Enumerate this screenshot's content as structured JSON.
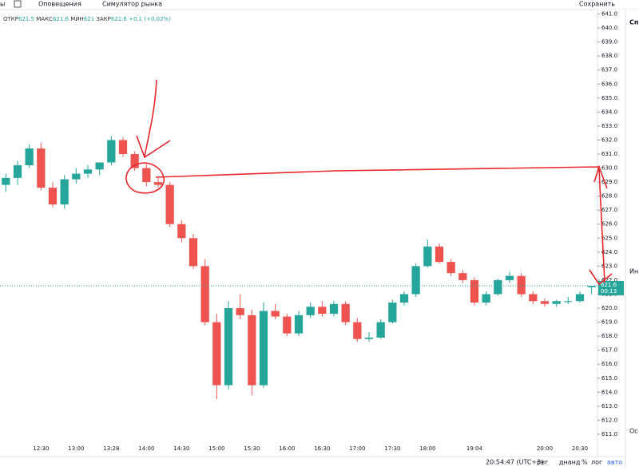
{
  "toolbar": {
    "left": "ы",
    "alerts": "Оповещения",
    "simulator": "Симулятор рынка",
    "save": "Сохранить"
  },
  "legend": {
    "open": "ОТКР",
    "high": "МАКС",
    "low": "МИН",
    "close": "ЗАКР",
    "change": "+0.1 (+0.02%)"
  },
  "countdown": "00:13",
  "status": {
    "time": "20:54:47 (UTC+3)",
    "session": "рег",
    "adjust": "днанд",
    "percent": "%",
    "log": "лог",
    "auto": "авто"
  },
  "sidebar": {
    "title": "Спи",
    "item": "Ин",
    "section": "Ос"
  },
  "chart_data": {
    "type": "candlestick",
    "up_color": "#26a69a",
    "down_color": "#ef5350",
    "categories": [
      null,
      null,
      null,
      "12:30",
      null,
      null,
      "13:00",
      null,
      null,
      "13:28",
      null,
      null,
      "14:00",
      null,
      null,
      "14:30",
      null,
      null,
      "15:00",
      null,
      null,
      "15:30",
      null,
      null,
      "16:00",
      null,
      null,
      "16:30",
      null,
      null,
      "17:00",
      null,
      null,
      "17:30",
      null,
      null,
      "18:00",
      null,
      null,
      null,
      "19:04",
      null,
      null,
      null,
      null,
      null,
      "20:00",
      null,
      null,
      "20:30",
      null
    ],
    "open": [
      628.8,
      629.3,
      630.2,
      631.4,
      628.6,
      627.4,
      629.2,
      629.6,
      629.9,
      630.4,
      632.0,
      631.0,
      630.0,
      629.0,
      628.8,
      626.0,
      625.0,
      623.0,
      619.0,
      614.5,
      620.0,
      619.5,
      614.5,
      619.8,
      619.4,
      618.2,
      619.5,
      620.1,
      619.6,
      620.3,
      619.0,
      617.8,
      617.9,
      619.0,
      620.4,
      621.0,
      623.0,
      624.4,
      623.3,
      622.5,
      622.0,
      620.4,
      621.0,
      622.0,
      622.3,
      621.0,
      620.5,
      620.3,
      620.5,
      620.5,
      621.5
    ],
    "high": [
      629.6,
      630.5,
      631.7,
      631.8,
      629.0,
      629.5,
      630.0,
      630.2,
      630.4,
      632.3,
      632.2,
      631.2,
      630.3,
      629.3,
      629.0,
      626.3,
      625.3,
      623.5,
      619.6,
      620.5,
      621.0,
      619.9,
      620.4,
      620.3,
      619.6,
      619.8,
      620.4,
      620.5,
      620.5,
      620.5,
      619.3,
      618.3,
      619.2,
      620.6,
      621.2,
      623.2,
      624.9,
      624.6,
      623.5,
      622.7,
      622.2,
      621.2,
      622.1,
      622.6,
      622.5,
      621.2,
      620.7,
      620.6,
      620.8,
      621.2,
      621.6
    ],
    "low": [
      628.3,
      628.8,
      630.0,
      628.4,
      627.2,
      627.1,
      628.9,
      629.3,
      629.5,
      630.2,
      630.8,
      629.8,
      628.7,
      628.6,
      625.8,
      624.7,
      622.8,
      618.8,
      613.5,
      614.2,
      619.2,
      613.8,
      614.3,
      619.2,
      618.0,
      618.0,
      619.3,
      619.4,
      619.4,
      618.8,
      617.6,
      617.6,
      617.8,
      618.9,
      620.2,
      620.8,
      622.9,
      623.2,
      622.3,
      621.8,
      620.2,
      620.2,
      620.9,
      621.8,
      620.8,
      620.3,
      620.1,
      620.1,
      620.3,
      620.4,
      621.0
    ],
    "close": [
      629.3,
      630.2,
      631.4,
      628.6,
      627.4,
      629.2,
      629.6,
      629.9,
      630.4,
      632.0,
      631.0,
      630.0,
      629.0,
      628.8,
      626.0,
      625.0,
      623.0,
      619.0,
      614.5,
      620.0,
      619.5,
      614.5,
      619.8,
      619.4,
      618.2,
      619.5,
      620.1,
      619.6,
      620.3,
      619.0,
      617.8,
      617.9,
      619.0,
      620.4,
      621.0,
      623.0,
      624.4,
      623.3,
      622.5,
      622.0,
      620.4,
      621.0,
      622.0,
      622.3,
      621.0,
      620.5,
      620.3,
      620.5,
      620.5,
      621.0,
      621.6
    ],
    "ylim": [
      609.8,
      642
    ],
    "yticks": [
      {
        "value": 611,
        "label": "611.0"
      },
      {
        "value": 612,
        "label": "612.0"
      },
      {
        "value": 613,
        "label": "613.0"
      },
      {
        "value": 614,
        "label": "614.0"
      },
      {
        "value": 615,
        "label": "615.0"
      },
      {
        "value": 616,
        "label": "616.0"
      },
      {
        "value": 617,
        "label": "617.0"
      },
      {
        "value": 618,
        "label": "618.0"
      },
      {
        "value": 619,
        "label": "619.0"
      },
      {
        "value": 620,
        "label": "620.0"
      },
      {
        "value": 621,
        "label": "621.0"
      },
      {
        "value": 622,
        "label": "622.0"
      },
      {
        "value": 623,
        "label": "623.0"
      },
      {
        "value": 624,
        "label": "624.0"
      },
      {
        "value": 625,
        "label": "625.0"
      },
      {
        "value": 626,
        "label": "626.0"
      },
      {
        "value": 627,
        "label": "627.0"
      },
      {
        "value": 628,
        "label": "628.0"
      },
      {
        "value": 629,
        "label": "629.0"
      },
      {
        "value": 630,
        "label": "630.0"
      },
      {
        "value": 631,
        "label": "631.0"
      },
      {
        "value": 632,
        "label": "632.0"
      },
      {
        "value": 633,
        "label": "633.0"
      },
      {
        "value": 634,
        "label": "634.0"
      },
      {
        "value": 635,
        "label": "635.0"
      },
      {
        "value": 636,
        "label": "636.0"
      },
      {
        "value": 637,
        "label": "637.0"
      },
      {
        "value": 638,
        "label": "638.0"
      },
      {
        "value": 639,
        "label": "639.0"
      },
      {
        "value": 640,
        "label": "640.0"
      },
      {
        "value": 641,
        "label": "641.0"
      }
    ]
  }
}
